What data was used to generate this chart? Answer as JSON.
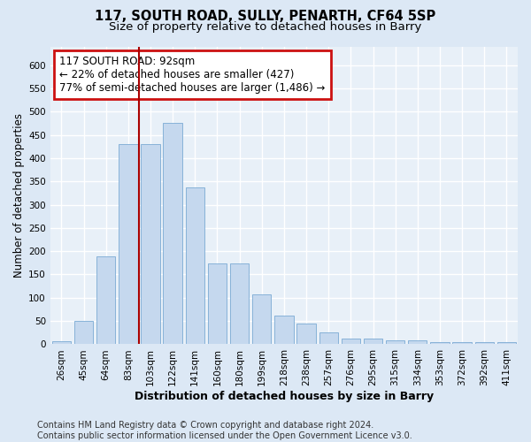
{
  "title_line1": "117, SOUTH ROAD, SULLY, PENARTH, CF64 5SP",
  "title_line2": "Size of property relative to detached houses in Barry",
  "xlabel": "Distribution of detached houses by size in Barry",
  "ylabel": "Number of detached properties",
  "categories": [
    "26sqm",
    "45sqm",
    "64sqm",
    "83sqm",
    "103sqm",
    "122sqm",
    "141sqm",
    "160sqm",
    "180sqm",
    "199sqm",
    "218sqm",
    "238sqm",
    "257sqm",
    "276sqm",
    "295sqm",
    "315sqm",
    "334sqm",
    "353sqm",
    "372sqm",
    "392sqm",
    "411sqm"
  ],
  "values": [
    6,
    50,
    188,
    430,
    430,
    476,
    338,
    174,
    174,
    107,
    62,
    45,
    25,
    12,
    12,
    9,
    8,
    5,
    5,
    5,
    5
  ],
  "bar_color": "#c5d8ee",
  "bar_edge_color": "#7aaad4",
  "vline_color": "#aa0000",
  "vline_pos": 3.5,
  "annotation_line1": "117 SOUTH ROAD: 92sqm",
  "annotation_line2": "← 22% of detached houses are smaller (427)",
  "annotation_line3": "77% of semi-detached houses are larger (1,486) →",
  "annotation_box_facecolor": "#ffffff",
  "annotation_box_edgecolor": "#cc1111",
  "ylim_max": 640,
  "yticks": [
    0,
    50,
    100,
    150,
    200,
    250,
    300,
    350,
    400,
    450,
    500,
    550,
    600
  ],
  "footer_line1": "Contains HM Land Registry data © Crown copyright and database right 2024.",
  "footer_line2": "Contains public sector information licensed under the Open Government Licence v3.0.",
  "bg_color": "#dce8f5",
  "plot_bg_color": "#e8f0f8",
  "grid_color": "#ffffff",
  "title_fontsize": 10.5,
  "subtitle_fontsize": 9.5,
  "xlabel_fontsize": 9,
  "ylabel_fontsize": 8.5,
  "tick_fontsize": 7.5,
  "annot_fontsize": 8.5,
  "footer_fontsize": 7
}
